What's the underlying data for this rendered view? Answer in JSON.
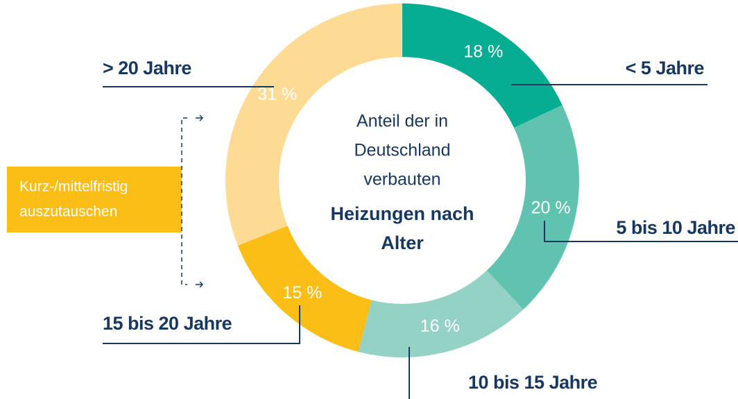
{
  "chart_data": {
    "type": "donut",
    "center_text": [
      "Anteil der in",
      "Deutschland",
      "verbauten"
    ],
    "center_title": [
      "Heizungen nach",
      "Alter"
    ],
    "categories": [
      "< 5 Jahre",
      "5 bis 10 Jahre",
      "10 bis 15 Jahre",
      "15 bis 20 Jahre",
      "> 20 Jahre"
    ],
    "values": [
      18,
      20,
      16,
      15,
      31
    ],
    "value_labels": [
      "18 %",
      "20 %",
      "16 %",
      "15 %",
      "31 %"
    ],
    "colors": [
      "#06ad92",
      "#5fc3b0",
      "#94d2c6",
      "#fbbe17",
      "#fddb94"
    ],
    "annotation": [
      "Kurz-/mittelfristig",
      "auszutauschen"
    ]
  }
}
